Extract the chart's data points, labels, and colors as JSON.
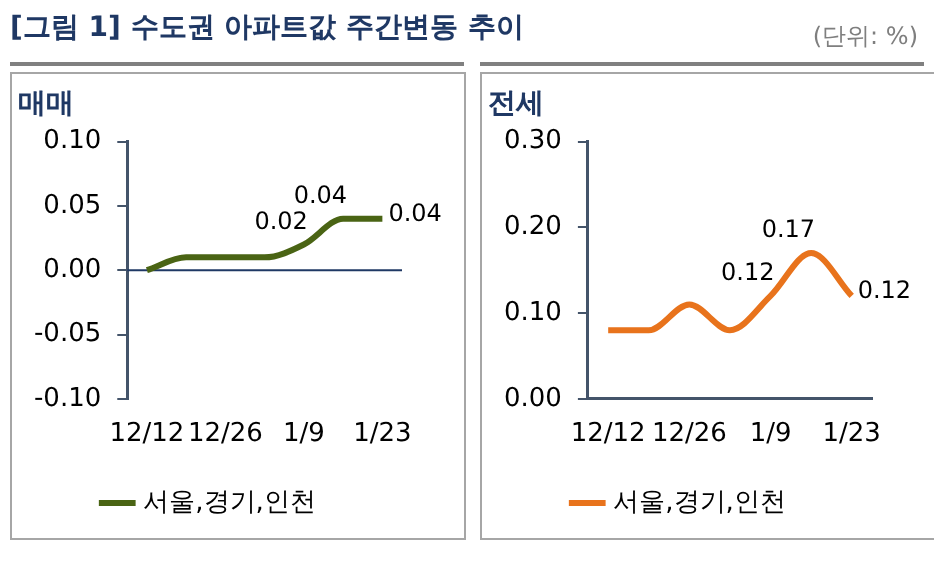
{
  "chart_data": [
    {
      "type": "line",
      "title": "[그림 1] 수도권 아파트값 주간변동 추이",
      "subtitle": "매매",
      "categories": [
        "12/12",
        null,
        "12/26",
        null,
        "1/9",
        null,
        "1/23"
      ],
      "series": [
        {
          "name": "서울,경기,인천",
          "color": "#4a6414",
          "values": [
            0,
            0.01,
            0.01,
            0.01,
            0.02,
            0.04,
            0.04
          ],
          "value_labels": [
            null,
            null,
            null,
            null,
            "0.02",
            "0.04",
            "0.04"
          ]
        }
      ],
      "ylim": [
        -0.1,
        0.1
      ],
      "yticks": [
        {
          "value": -0.1,
          "label": "-0.10"
        },
        {
          "value": -0.05,
          "label": "-0.05"
        },
        {
          "value": 0,
          "label": "0.00"
        },
        {
          "value": 0.05,
          "label": "0.05"
        },
        {
          "value": 0.1,
          "label": "0.10"
        }
      ],
      "ref_lines": [
        {
          "axis": "y",
          "value": 0,
          "color": "#1f3864"
        }
      ],
      "legend": "bottom",
      "grid": false,
      "marker": "none"
    },
    {
      "type": "line",
      "subtitle": "전세",
      "annotations": [
        "(단위: %)"
      ],
      "categories": [
        "12/12",
        null,
        "12/26",
        null,
        "1/9",
        null,
        "1/23"
      ],
      "series": [
        {
          "name": "서울,경기,인천",
          "color": "#e8731c",
          "values": [
            0.08,
            0.08,
            0.11,
            0.08,
            0.12,
            0.17,
            0.12
          ],
          "value_labels": [
            null,
            null,
            null,
            null,
            "0.12",
            "0.17",
            "0.12"
          ]
        }
      ],
      "ylim": [
        0,
        0.3
      ],
      "yticks": [
        {
          "value": 0,
          "label": "0.00"
        },
        {
          "value": 0.1,
          "label": "0.10"
        },
        {
          "value": 0.2,
          "label": "0.20"
        },
        {
          "value": 0.3,
          "label": "0.30"
        }
      ],
      "legend": "bottom",
      "grid": false,
      "marker": "none"
    }
  ]
}
